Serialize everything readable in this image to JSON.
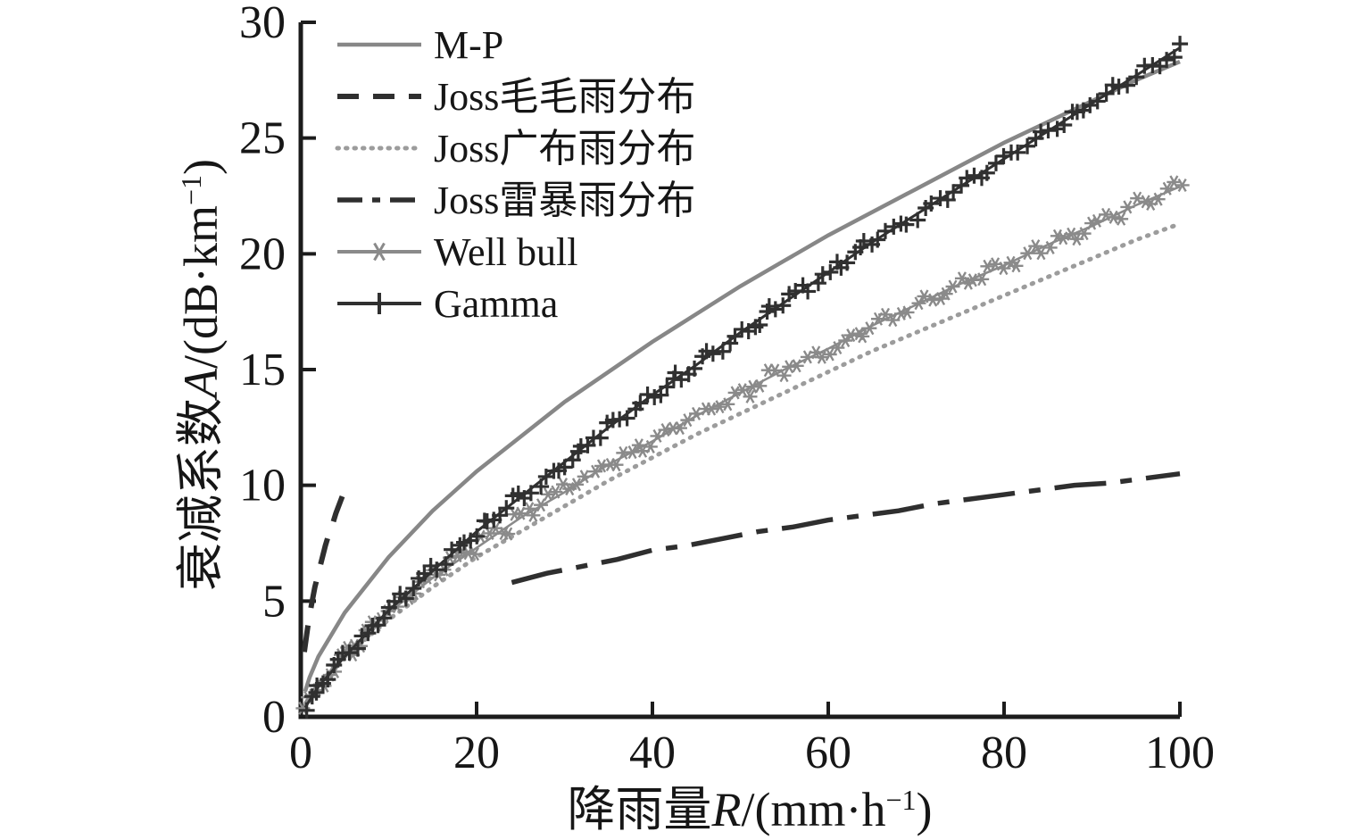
{
  "figure": {
    "background": "#ffffff",
    "axis_color": "#1c1c1c",
    "text_color": "#161616"
  },
  "chart_data": {
    "type": "line",
    "title": "",
    "xlabel": "降雨量R/(mm·h−1)",
    "ylabel": "衰减系数A/(dB·km−1)",
    "xlabel_parts": {
      "prefix": "降雨量",
      "symbol": "R",
      "unit_open": "/(mm·h",
      "sup": "−1",
      "unit_close": ")"
    },
    "ylabel_parts": {
      "prefix": "衰减系数",
      "symbol": "A",
      "unit_open": "/(dB·km",
      "sup": "−1",
      "unit_close": ")"
    },
    "xlim": [
      0,
      100
    ],
    "ylim": [
      0,
      30
    ],
    "xticks": [
      0,
      20,
      40,
      60,
      80,
      100
    ],
    "yticks": [
      0,
      5,
      10,
      15,
      20,
      25,
      30
    ],
    "grid": false,
    "legend_position": "top-left-inside",
    "series": [
      {
        "name": "M-P",
        "line": "solid",
        "color": "#878787",
        "width": 4.5,
        "marker": null,
        "x": [
          0.5,
          1,
          2,
          5,
          10,
          15,
          20,
          25,
          30,
          35,
          40,
          45,
          50,
          55,
          60,
          65,
          70,
          75,
          80,
          85,
          90,
          95,
          100
        ],
        "y": [
          1.1,
          1.7,
          2.6,
          4.5,
          6.9,
          8.9,
          10.6,
          12.1,
          13.6,
          14.9,
          16.2,
          17.4,
          18.6,
          19.7,
          20.8,
          21.8,
          22.8,
          23.8,
          24.8,
          25.7,
          26.6,
          27.5,
          28.3
        ]
      },
      {
        "name": "Joss毛毛雨分布",
        "line": "dashed",
        "color": "#2f2f2f",
        "width": 6,
        "marker": null,
        "x": [
          0.4,
          0.8,
          1.2,
          1.6,
          2.0,
          2.4,
          2.8,
          3.2,
          3.6,
          4.0,
          4.4,
          4.8
        ],
        "y": [
          2.8,
          3.9,
          4.8,
          5.6,
          6.2,
          6.8,
          7.4,
          7.9,
          8.3,
          8.8,
          9.2,
          9.6
        ]
      },
      {
        "name": "Joss广布雨分布",
        "line": "dotted",
        "color": "#9c9c9c",
        "width": 5,
        "marker": null,
        "x": [
          0.5,
          1,
          2,
          5,
          10,
          15,
          20,
          25,
          30,
          35,
          40,
          45,
          50,
          55,
          60,
          65,
          70,
          75,
          80,
          85,
          90,
          95,
          100
        ],
        "y": [
          0.5,
          0.8,
          1.4,
          2.6,
          4.2,
          5.6,
          6.9,
          8.0,
          9.1,
          10.2,
          11.2,
          12.2,
          13.1,
          14.0,
          14.9,
          15.8,
          16.6,
          17.4,
          18.2,
          19.0,
          19.8,
          20.6,
          21.3
        ]
      },
      {
        "name": "Joss雷暴雨分布",
        "line": "dashdot",
        "color": "#2f2f2f",
        "width": 5.5,
        "marker": null,
        "x": [
          24,
          28,
          32,
          36,
          40,
          44,
          48,
          52,
          56,
          60,
          64,
          68,
          72,
          76,
          80,
          84,
          88,
          92,
          96,
          100
        ],
        "y": [
          5.8,
          6.2,
          6.5,
          6.8,
          7.2,
          7.4,
          7.7,
          8.0,
          8.2,
          8.5,
          8.7,
          8.9,
          9.2,
          9.4,
          9.6,
          9.8,
          10.0,
          10.1,
          10.3,
          10.5
        ]
      },
      {
        "name": "Well bull",
        "line": "solid",
        "color": "#8a8a8a",
        "width": 2.5,
        "marker": "asterisk",
        "x": [
          0.5,
          1,
          2,
          5,
          10,
          15,
          20,
          25,
          30,
          35,
          40,
          45,
          50,
          55,
          60,
          65,
          70,
          75,
          80,
          85,
          90,
          95,
          100
        ],
        "y": [
          0.5,
          0.9,
          1.4,
          2.7,
          4.5,
          6.0,
          7.3,
          8.6,
          9.7,
          10.9,
          11.9,
          13.0,
          14.0,
          15.0,
          15.9,
          16.9,
          17.8,
          18.7,
          19.5,
          20.4,
          21.2,
          22.1,
          22.9
        ]
      },
      {
        "name": "Gamma",
        "line": "solid",
        "color": "#303030",
        "width": 3,
        "marker": "plus",
        "x": [
          0.5,
          1,
          2,
          5,
          10,
          15,
          20,
          25,
          30,
          35,
          40,
          45,
          50,
          55,
          60,
          65,
          70,
          75,
          80,
          85,
          90,
          95,
          100
        ],
        "y": [
          0.4,
          0.7,
          1.3,
          2.6,
          4.6,
          6.3,
          8.0,
          9.5,
          11.0,
          12.5,
          13.9,
          15.2,
          16.6,
          17.9,
          19.2,
          20.5,
          21.7,
          22.9,
          24.1,
          25.3,
          26.5,
          27.7,
          28.9
        ]
      }
    ]
  }
}
